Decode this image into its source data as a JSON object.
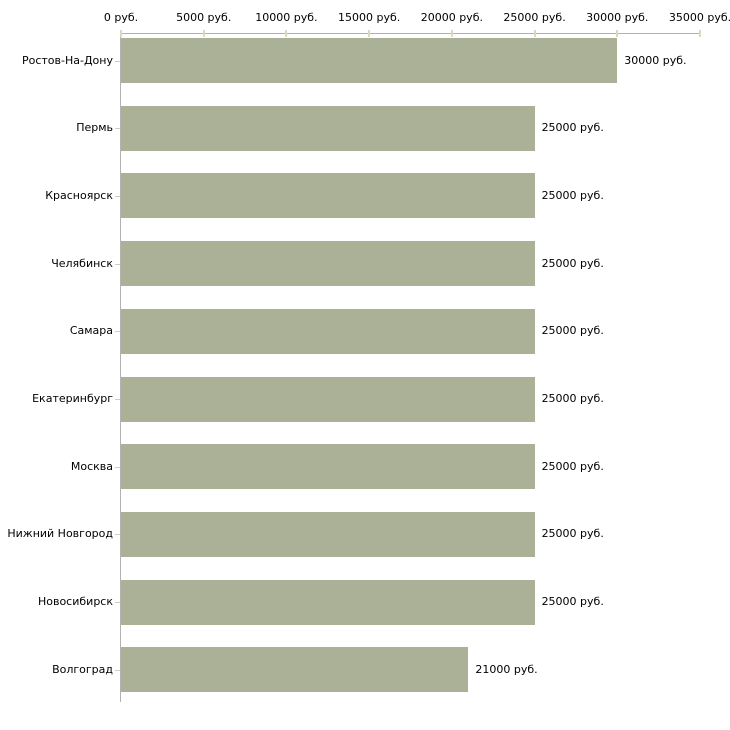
{
  "chart_data": {
    "type": "bar",
    "orientation": "horizontal",
    "unit": "руб.",
    "categories": [
      "Ростов-На-Дону",
      "Пермь",
      "Красноярск",
      "Челябинск",
      "Самара",
      "Екатеринбург",
      "Москва",
      "Нижний Новгород",
      "Новосибирск",
      "Волгоград"
    ],
    "values": [
      30000,
      25000,
      25000,
      25000,
      25000,
      25000,
      25000,
      25000,
      25000,
      21000
    ],
    "value_labels": [
      "30000 руб.",
      "25000 руб.",
      "25000 руб.",
      "25000 руб.",
      "25000 руб.",
      "25000 руб.",
      "25000 руб.",
      "25000 руб.",
      "25000 руб.",
      "21000 руб."
    ],
    "x_axis": {
      "position": "top",
      "tick_values": [
        0,
        5000,
        10000,
        15000,
        20000,
        25000,
        30000,
        35000
      ],
      "tick_labels": [
        "0 руб.",
        "5000 руб.",
        "10000 руб.",
        "15000 руб.",
        "20000 руб.",
        "25000 руб.",
        "30000 руб.",
        "35000 руб."
      ],
      "xlim": [
        0,
        35000
      ]
    },
    "grid": false,
    "legend": false,
    "colors": {
      "bar": "#abb196",
      "axis_line": "#b2b2b2",
      "axis_tick": "#d9d9bb",
      "category_tick": "#cfcfbc",
      "text": "#000000",
      "background": "#ffffff"
    }
  }
}
